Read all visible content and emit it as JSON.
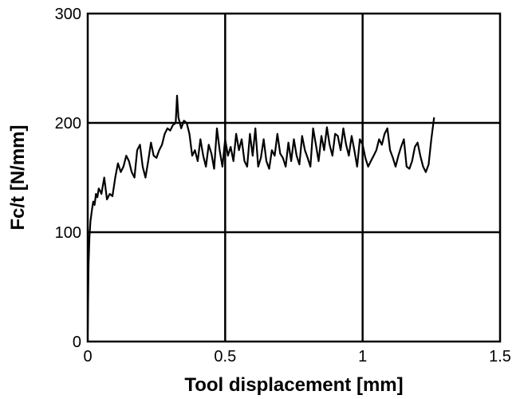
{
  "chart_data": {
    "type": "line",
    "title": "",
    "xlabel": "Tool displacement [mm]",
    "ylabel": "Fc/t [N/mm]",
    "xlim": [
      0,
      1.5
    ],
    "ylim": [
      0,
      300
    ],
    "xticks": [
      "0",
      "0.5",
      "1",
      "1.5"
    ],
    "yticks": [
      "0",
      "100",
      "200",
      "300"
    ],
    "grid": true,
    "legend": "none",
    "colors": {
      "line": "#000000",
      "grid": "#000000",
      "background": "#ffffff"
    },
    "series": [
      {
        "x": [
          0,
          0.003,
          0.006,
          0.01,
          0.015,
          0.02,
          0.025,
          0.03,
          0.035,
          0.04,
          0.045,
          0.05,
          0.06,
          0.07,
          0.08,
          0.09,
          0.1,
          0.11,
          0.12,
          0.13,
          0.14,
          0.15,
          0.16,
          0.17,
          0.18,
          0.19,
          0.2,
          0.21,
          0.22,
          0.23,
          0.24,
          0.25,
          0.26,
          0.27,
          0.28,
          0.29,
          0.3,
          0.31,
          0.32,
          0.325,
          0.33,
          0.34,
          0.35,
          0.36,
          0.37,
          0.38,
          0.39,
          0.4,
          0.41,
          0.42,
          0.43,
          0.44,
          0.45,
          0.46,
          0.47,
          0.48,
          0.49,
          0.5,
          0.51,
          0.52,
          0.53,
          0.54,
          0.55,
          0.56,
          0.57,
          0.58,
          0.59,
          0.6,
          0.61,
          0.62,
          0.63,
          0.64,
          0.65,
          0.66,
          0.67,
          0.68,
          0.69,
          0.7,
          0.71,
          0.72,
          0.73,
          0.74,
          0.75,
          0.76,
          0.77,
          0.78,
          0.79,
          0.8,
          0.81,
          0.82,
          0.83,
          0.84,
          0.85,
          0.86,
          0.87,
          0.88,
          0.89,
          0.9,
          0.91,
          0.92,
          0.93,
          0.94,
          0.95,
          0.96,
          0.97,
          0.98,
          0.99,
          1.0,
          1.01,
          1.02,
          1.03,
          1.04,
          1.05,
          1.06,
          1.07,
          1.08,
          1.09,
          1.1,
          1.11,
          1.12,
          1.13,
          1.14,
          1.15,
          1.16,
          1.17,
          1.18,
          1.19,
          1.2,
          1.21,
          1.22,
          1.23,
          1.24,
          1.25,
          1.26
        ],
        "y": [
          10,
          70,
          95,
          110,
          120,
          128,
          125,
          135,
          132,
          140,
          138,
          135,
          150,
          130,
          135,
          133,
          150,
          163,
          155,
          160,
          170,
          165,
          155,
          150,
          175,
          180,
          160,
          150,
          165,
          182,
          170,
          168,
          175,
          180,
          190,
          195,
          193,
          198,
          200,
          225,
          205,
          195,
          202,
          200,
          190,
          170,
          175,
          165,
          185,
          170,
          160,
          180,
          172,
          158,
          195,
          175,
          160,
          185,
          170,
          178,
          165,
          190,
          175,
          185,
          165,
          160,
          190,
          170,
          195,
          160,
          168,
          185,
          165,
          158,
          175,
          170,
          190,
          172,
          168,
          160,
          182,
          165,
          185,
          170,
          162,
          188,
          175,
          168,
          160,
          195,
          180,
          165,
          188,
          175,
          196,
          180,
          170,
          190,
          188,
          175,
          195,
          180,
          170,
          188,
          175,
          160,
          185,
          180,
          168,
          160,
          165,
          170,
          175,
          185,
          180,
          190,
          195,
          175,
          168,
          160,
          170,
          178,
          185,
          160,
          158,
          165,
          178,
          182,
          170,
          160,
          155,
          162,
          185,
          205
        ]
      }
    ]
  }
}
